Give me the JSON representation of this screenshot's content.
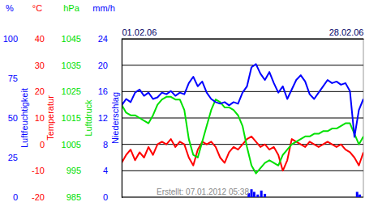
{
  "chart_data": [
    {
      "type": "line",
      "ylabel": "Luftfeuchtigkeit",
      "yunit": "%",
      "color": "#0000ff",
      "annotation": "Erstellt: 07.01.2012 05:38",
      "x": [
        1,
        1.5,
        2,
        2.5,
        3,
        3.5,
        4,
        4.5,
        5,
        5.5,
        6,
        6.5,
        7,
        7.5,
        8,
        8.5,
        9,
        9.5,
        10,
        10.5,
        11,
        11.5,
        12,
        12.5,
        13,
        13.5,
        14,
        14.5,
        15,
        15.5,
        16,
        16.5,
        17,
        17.5,
        18,
        18.5,
        19,
        19.5,
        20,
        20.5,
        21,
        21.5,
        22,
        22.5,
        23,
        23.5,
        24,
        24.5,
        25,
        25.5,
        26,
        26.5,
        27,
        27.5,
        28
      ],
      "xlim": [
        1,
        28
      ],
      "xticks": [
        {
          "value": 1,
          "label": "01.02.06"
        },
        {
          "value": 28,
          "label": "28.02.06"
        }
      ],
      "ylim": [
        0,
        100
      ],
      "yticks": [
        0,
        25,
        50,
        75,
        100
      ],
      "values": [
        58,
        62,
        60,
        66,
        68,
        64,
        66,
        62,
        63,
        66,
        65,
        67,
        64,
        66,
        65,
        72,
        76,
        70,
        73,
        66,
        62,
        60,
        59,
        60,
        58,
        60,
        59,
        66,
        70,
        82,
        84,
        78,
        74,
        79,
        72,
        66,
        70,
        62,
        68,
        74,
        77,
        73,
        65,
        62,
        66,
        70,
        74,
        72,
        73,
        71,
        72,
        67,
        38,
        55,
        62
      ]
    },
    {
      "type": "line",
      "ylabel": "Temperatur",
      "yunit": "°C",
      "color": "#ff0000",
      "grid": true,
      "x": [
        1,
        1.5,
        2,
        2.5,
        3,
        3.5,
        4,
        4.5,
        5,
        5.5,
        6,
        6.5,
        7,
        7.5,
        8,
        8.5,
        9,
        9.5,
        10,
        10.5,
        11,
        11.5,
        12,
        12.5,
        13,
        13.5,
        14,
        14.5,
        15,
        15.5,
        16,
        16.5,
        17,
        17.5,
        18,
        18.5,
        19,
        19.5,
        20,
        20.5,
        21,
        21.5,
        22,
        22.5,
        23,
        23.5,
        24,
        24.5,
        25,
        25.5,
        26,
        26.5,
        27,
        27.5,
        28
      ],
      "xlim": [
        1,
        28
      ],
      "ylim": [
        -20,
        40
      ],
      "yticks": [
        -20,
        -10,
        0,
        10,
        20,
        30,
        40
      ],
      "values": [
        -7,
        -4,
        -2,
        -6,
        -3,
        -5,
        -1,
        -4,
        0,
        1,
        0,
        2,
        -1,
        1,
        0,
        -5,
        -8,
        -2,
        1,
        0,
        1,
        -1,
        -5,
        -7,
        -3,
        -1,
        -2,
        0,
        2,
        3,
        1,
        -1,
        0,
        -2,
        -1,
        -4,
        -10,
        -6,
        2,
        1,
        0,
        -1,
        1,
        0,
        -1,
        0,
        1,
        0,
        -1,
        0,
        -2,
        -3,
        -5,
        -8,
        -3
      ]
    },
    {
      "type": "line",
      "ylabel": "Luftdruck",
      "yunit": "hPa",
      "color": "#00e000",
      "x": [
        1,
        1.5,
        2,
        2.5,
        3,
        3.5,
        4,
        4.5,
        5,
        5.5,
        6,
        6.5,
        7,
        7.5,
        8,
        8.5,
        9,
        9.5,
        10,
        10.5,
        11,
        11.5,
        12,
        12.5,
        13,
        13.5,
        14,
        14.5,
        15,
        15.5,
        16,
        16.5,
        17,
        17.5,
        18,
        18.5,
        19,
        19.5,
        20,
        20.5,
        21,
        21.5,
        22,
        22.5,
        23,
        23.5,
        24,
        24.5,
        25,
        25.5,
        26,
        26.5,
        27,
        27.5,
        28
      ],
      "xlim": [
        1,
        28
      ],
      "ylim": [
        985,
        1045
      ],
      "yticks": [
        985,
        995,
        1005,
        1015,
        1025,
        1035,
        1045
      ],
      "values": [
        1020,
        1017,
        1016,
        1016,
        1015,
        1014,
        1013,
        1016,
        1020,
        1022,
        1023,
        1023,
        1022,
        1022,
        1018,
        1007,
        1001,
        1000,
        1006,
        1012,
        1018,
        1022,
        1021,
        1019,
        1019,
        1018,
        1016,
        1012,
        1004,
        997,
        994,
        996,
        998,
        999,
        998,
        997,
        1001,
        1003,
        1005,
        1006,
        1007,
        1008,
        1008,
        1009,
        1009,
        1010,
        1010,
        1011,
        1011,
        1012,
        1013,
        1013,
        1009,
        1005,
        1008
      ]
    },
    {
      "type": "bar",
      "ylabel": "Niederschlag",
      "yunit": "mm/h",
      "color": "#0000ff",
      "x": [
        15.2,
        15.5,
        15.8,
        16.2,
        16.6,
        17.0,
        27.3,
        27.6
      ],
      "xlim": [
        1,
        28
      ],
      "ylim": [
        0,
        24
      ],
      "yticks": [
        0,
        4,
        8,
        12,
        16,
        20,
        24
      ],
      "values": [
        0.6,
        1.2,
        0.8,
        0.4,
        1.0,
        0.5,
        0.8,
        0.4
      ]
    }
  ]
}
